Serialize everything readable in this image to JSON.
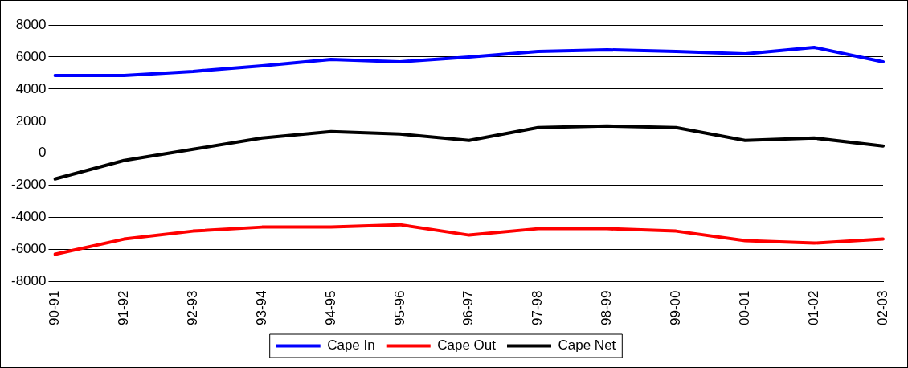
{
  "chart_data": {
    "type": "line",
    "categories": [
      "90-91",
      "91-92",
      "92-93",
      "93-94",
      "94-95",
      "95-96",
      "96-97",
      "97-98",
      "98-99",
      "99-00",
      "00-01",
      "01-02",
      "02-03"
    ],
    "series": [
      {
        "name": "Cape In",
        "color": "#0000ff",
        "values": [
          4850,
          4850,
          5100,
          5450,
          5850,
          5700,
          6000,
          6350,
          6450,
          6350,
          6200,
          6600,
          5700
        ]
      },
      {
        "name": "Cape Out",
        "color": "#ff0000",
        "values": [
          -6300,
          -5350,
          -4850,
          -4600,
          -4600,
          -4450,
          -5100,
          -4700,
          -4700,
          -4850,
          -5450,
          -5600,
          -5350
        ]
      },
      {
        "name": "Cape Net",
        "color": "#000000",
        "values": [
          -1600,
          -450,
          250,
          950,
          1350,
          1200,
          800,
          1600,
          1700,
          1600,
          800,
          950,
          450
        ]
      }
    ],
    "ylim": [
      -8000,
      8000
    ],
    "yticks": [
      -8000,
      -6000,
      -4000,
      -2000,
      0,
      2000,
      4000,
      6000,
      8000
    ],
    "grid": "y",
    "legend": "bottom",
    "marker": "none",
    "line_style": "solid"
  }
}
